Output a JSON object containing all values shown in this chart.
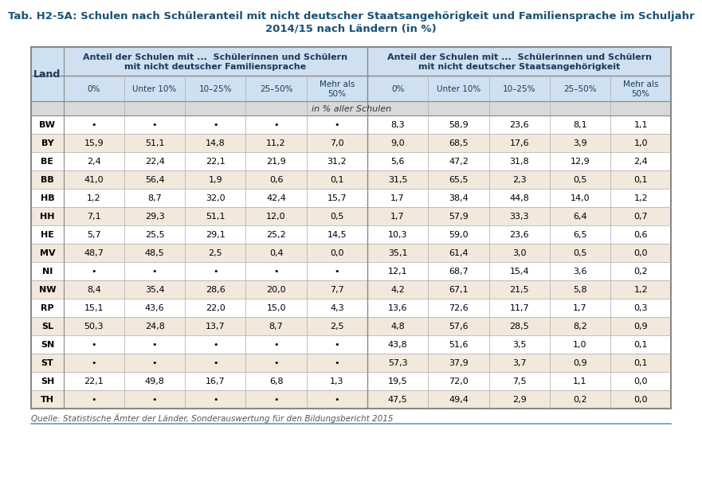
{
  "title_line1": "Tab. H2-5A: Schulen nach Schüleranteil mit nicht deutscher Staatsangehörigkeit und Familiensprache im Schuljahr",
  "title_line2": "2014/15 nach Ländern (in %)",
  "header1": "Anteil der Schulen mit ...  Schülerinnen und Schülern\nmit nicht deutscher Familiensprache",
  "header2": "Anteil der Schulen mit ...  Schülerinnen und Schülern\nmit nicht deutscher Staatsangehörigkeit",
  "col_headers": [
    "0%",
    "Unter 10%",
    "10–25%",
    "25–50%",
    "Mehr als\n50%",
    "0%",
    "Unter 10%",
    "10–25%",
    "25–50%",
    "Mehr als\n50%"
  ],
  "land_col": "Land",
  "subheader": "in % aller Schulen",
  "source": "Quelle: Statistische Ämter der Länder, Sonderauswertung für den Bildungsbericht 2015",
  "rows": [
    [
      "BW",
      "•",
      "•",
      "•",
      "•",
      "•",
      "8,3",
      "58,9",
      "23,6",
      "8,1",
      "1,1"
    ],
    [
      "BY",
      "15,9",
      "51,1",
      "14,8",
      "11,2",
      "7,0",
      "9,0",
      "68,5",
      "17,6",
      "3,9",
      "1,0"
    ],
    [
      "BE",
      "2,4",
      "22,4",
      "22,1",
      "21,9",
      "31,2",
      "5,6",
      "47,2",
      "31,8",
      "12,9",
      "2,4"
    ],
    [
      "BB",
      "41,0",
      "56,4",
      "1,9",
      "0,6",
      "0,1",
      "31,5",
      "65,5",
      "2,3",
      "0,5",
      "0,1"
    ],
    [
      "HB",
      "1,2",
      "8,7",
      "32,0",
      "42,4",
      "15,7",
      "1,7",
      "38,4",
      "44,8",
      "14,0",
      "1,2"
    ],
    [
      "HH",
      "7,1",
      "29,3",
      "51,1",
      "12,0",
      "0,5",
      "1,7",
      "57,9",
      "33,3",
      "6,4",
      "0,7"
    ],
    [
      "HE",
      "5,7",
      "25,5",
      "29,1",
      "25,2",
      "14,5",
      "10,3",
      "59,0",
      "23,6",
      "6,5",
      "0,6"
    ],
    [
      "MV",
      "48,7",
      "48,5",
      "2,5",
      "0,4",
      "0,0",
      "35,1",
      "61,4",
      "3,0",
      "0,5",
      "0,0"
    ],
    [
      "NI",
      "•",
      "•",
      "•",
      "•",
      "•",
      "12,1",
      "68,7",
      "15,4",
      "3,6",
      "0,2"
    ],
    [
      "NW",
      "8,4",
      "35,4",
      "28,6",
      "20,0",
      "7,7",
      "4,2",
      "67,1",
      "21,5",
      "5,8",
      "1,2"
    ],
    [
      "RP",
      "15,1",
      "43,6",
      "22,0",
      "15,0",
      "4,3",
      "13,6",
      "72,6",
      "11,7",
      "1,7",
      "0,3"
    ],
    [
      "SL",
      "50,3",
      "24,8",
      "13,7",
      "8,7",
      "2,5",
      "4,8",
      "57,6",
      "28,5",
      "8,2",
      "0,9"
    ],
    [
      "SN",
      "•",
      "•",
      "•",
      "•",
      "•",
      "43,8",
      "51,6",
      "3,5",
      "1,0",
      "0,1"
    ],
    [
      "ST",
      "•",
      "•",
      "•",
      "•",
      "•",
      "57,3",
      "37,9",
      "3,7",
      "0,9",
      "0,1"
    ],
    [
      "SH",
      "22,1",
      "49,8",
      "16,7",
      "6,8",
      "1,3",
      "19,5",
      "72,0",
      "7,5",
      "1,1",
      "0,0"
    ],
    [
      "TH",
      "•",
      "•",
      "•",
      "•",
      "•",
      "47,5",
      "49,4",
      "2,9",
      "0,2",
      "0,0"
    ]
  ],
  "header_bg": "#cfe0f0",
  "subheader_bg": "#d9d9d9",
  "row_bg_even": "#f2e8dc",
  "row_bg_odd": "#ffffff",
  "title_color": "#1a5276",
  "header_text_color": "#1a3a5c",
  "border_color": "#888888",
  "source_color": "#555555",
  "text_color": "#000000",
  "source_line_color": "#5b9bd5"
}
